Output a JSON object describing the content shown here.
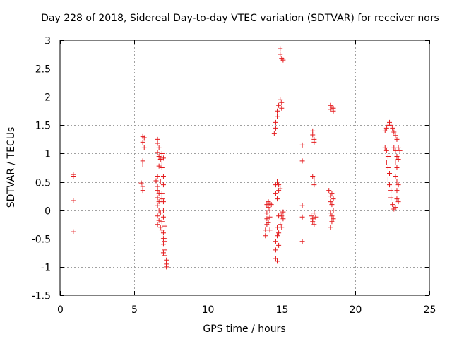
{
  "chart_data": {
    "type": "scatter",
    "title": "Day 228 of 2018, Sidereal Day-to-day VTEC variation (SDTVAR) for receiver nors",
    "xlabel": "GPS time / hours",
    "ylabel": "SDTVAR / TECUs",
    "xlim": [
      0,
      25
    ],
    "ylim": [
      -1.5,
      3
    ],
    "xticks": [
      0,
      5,
      10,
      15,
      20,
      25
    ],
    "xtick_labels": [
      "0",
      "5",
      "10",
      "15",
      "20",
      "25"
    ],
    "yticks": [
      -1.5,
      -1,
      -0.5,
      0,
      0.5,
      1,
      1.5,
      2,
      2.5,
      3
    ],
    "ytick_labels": [
      "-1.5",
      "-1",
      "-0.5",
      "0",
      "0.5",
      "1",
      "1.5",
      "2",
      "2.5",
      "3"
    ],
    "grid": true,
    "marker": "+",
    "color": "#e41a1c",
    "series": [
      {
        "name": "SDTVAR",
        "points": [
          [
            0.9,
            0.63
          ],
          [
            0.9,
            0.6
          ],
          [
            0.9,
            0.17
          ],
          [
            0.9,
            -0.38
          ],
          [
            5.6,
            1.3
          ],
          [
            5.7,
            1.28
          ],
          [
            5.6,
            1.2
          ],
          [
            5.7,
            1.1
          ],
          [
            5.6,
            0.87
          ],
          [
            5.6,
            0.8
          ],
          [
            5.5,
            0.48
          ],
          [
            5.6,
            0.42
          ],
          [
            5.6,
            0.35
          ],
          [
            6.6,
            1.25
          ],
          [
            6.6,
            1.18
          ],
          [
            6.7,
            1.1
          ],
          [
            6.6,
            1.02
          ],
          [
            6.7,
            0.95
          ],
          [
            6.8,
            0.9
          ],
          [
            6.9,
            0.85
          ],
          [
            6.7,
            0.78
          ],
          [
            6.6,
            0.6
          ],
          [
            6.5,
            0.52
          ],
          [
            6.6,
            0.42
          ],
          [
            6.6,
            0.35
          ],
          [
            6.7,
            0.3
          ],
          [
            6.6,
            0.22
          ],
          [
            6.7,
            0.15
          ],
          [
            6.6,
            0.08
          ],
          [
            6.7,
            0.0
          ],
          [
            6.6,
            -0.1
          ],
          [
            6.7,
            -0.18
          ],
          [
            6.6,
            -0.25
          ],
          [
            6.8,
            -0.3
          ],
          [
            6.9,
            -0.35
          ],
          [
            6.9,
            1.0
          ],
          [
            7.0,
            0.92
          ],
          [
            6.9,
            0.75
          ],
          [
            7.0,
            0.6
          ],
          [
            7.0,
            0.45
          ],
          [
            6.9,
            0.3
          ],
          [
            7.0,
            0.15
          ],
          [
            7.0,
            0.0
          ],
          [
            7.0,
            -0.12
          ],
          [
            7.1,
            -0.28
          ],
          [
            7.0,
            -0.4
          ],
          [
            7.1,
            -0.5
          ],
          [
            7.0,
            -0.6
          ],
          [
            7.1,
            -0.7
          ],
          [
            7.1,
            -0.8
          ],
          [
            7.2,
            -0.88
          ],
          [
            7.2,
            -0.95
          ],
          [
            7.2,
            -1.0
          ],
          [
            6.8,
            0.5
          ],
          [
            6.9,
            0.2
          ],
          [
            6.8,
            -0.05
          ],
          [
            6.9,
            -0.2
          ],
          [
            7.0,
            -0.5
          ],
          [
            7.1,
            -0.55
          ],
          [
            7.0,
            -0.75
          ],
          [
            13.9,
            -0.45
          ],
          [
            13.9,
            -0.35
          ],
          [
            14.0,
            -0.25
          ],
          [
            14.0,
            -0.15
          ],
          [
            14.0,
            -0.05
          ],
          [
            14.1,
            0.05
          ],
          [
            14.0,
            0.1
          ],
          [
            14.1,
            0.15
          ],
          [
            14.2,
            0.12
          ],
          [
            14.2,
            0.0
          ],
          [
            14.2,
            -0.12
          ],
          [
            14.1,
            -0.22
          ],
          [
            14.2,
            -0.35
          ],
          [
            14.3,
            0.1
          ],
          [
            14.5,
            1.35
          ],
          [
            14.6,
            1.45
          ],
          [
            14.6,
            1.55
          ],
          [
            14.7,
            1.65
          ],
          [
            14.7,
            1.75
          ],
          [
            14.8,
            1.85
          ],
          [
            14.9,
            1.95
          ],
          [
            15.0,
            1.9
          ],
          [
            15.0,
            1.8
          ],
          [
            14.9,
            2.85
          ],
          [
            14.9,
            2.75
          ],
          [
            15.0,
            2.68
          ],
          [
            15.1,
            2.65
          ],
          [
            14.6,
            0.45
          ],
          [
            14.6,
            0.3
          ],
          [
            14.7,
            0.5
          ],
          [
            14.8,
            0.45
          ],
          [
            14.8,
            0.35
          ],
          [
            14.9,
            0.38
          ],
          [
            14.7,
            0.2
          ],
          [
            14.8,
            -0.1
          ],
          [
            14.9,
            -0.05
          ],
          [
            15.0,
            -0.1
          ],
          [
            15.1,
            -0.15
          ],
          [
            15.1,
            -0.03
          ],
          [
            14.7,
            -0.3
          ],
          [
            14.7,
            -0.45
          ],
          [
            14.6,
            -0.55
          ],
          [
            14.6,
            -0.7
          ],
          [
            14.6,
            -0.85
          ],
          [
            14.7,
            -0.9
          ],
          [
            14.8,
            -0.62
          ],
          [
            14.8,
            -0.4
          ],
          [
            14.9,
            -0.25
          ],
          [
            15.0,
            -0.3
          ],
          [
            16.4,
            1.15
          ],
          [
            16.4,
            0.87
          ],
          [
            16.4,
            0.08
          ],
          [
            16.4,
            -0.12
          ],
          [
            16.4,
            -0.55
          ],
          [
            17.1,
            1.4
          ],
          [
            17.1,
            1.33
          ],
          [
            17.2,
            1.25
          ],
          [
            17.2,
            1.2
          ],
          [
            17.1,
            0.6
          ],
          [
            17.2,
            0.55
          ],
          [
            17.2,
            0.45
          ],
          [
            17.0,
            -0.1
          ],
          [
            17.1,
            -0.15
          ],
          [
            17.1,
            -0.2
          ],
          [
            17.2,
            -0.05
          ],
          [
            17.2,
            -0.25
          ],
          [
            17.3,
            -0.12
          ],
          [
            18.3,
            1.85
          ],
          [
            18.3,
            1.78
          ],
          [
            18.4,
            1.82
          ],
          [
            18.5,
            1.8
          ],
          [
            18.5,
            1.75
          ],
          [
            18.2,
            0.35
          ],
          [
            18.3,
            0.25
          ],
          [
            18.3,
            0.15
          ],
          [
            18.4,
            0.3
          ],
          [
            18.4,
            0.1
          ],
          [
            18.5,
            0.2
          ],
          [
            18.5,
            0.0
          ],
          [
            18.3,
            -0.05
          ],
          [
            18.3,
            -0.3
          ],
          [
            18.4,
            -0.2
          ],
          [
            18.4,
            -0.1
          ],
          [
            18.5,
            -0.15
          ],
          [
            22.0,
            1.4
          ],
          [
            22.1,
            1.45
          ],
          [
            22.2,
            1.5
          ],
          [
            22.3,
            1.55
          ],
          [
            22.4,
            1.5
          ],
          [
            22.5,
            1.45
          ],
          [
            22.6,
            1.38
          ],
          [
            22.7,
            1.32
          ],
          [
            22.8,
            1.25
          ],
          [
            22.0,
            1.1
          ],
          [
            22.1,
            1.05
          ],
          [
            22.2,
            0.95
          ],
          [
            22.1,
            0.85
          ],
          [
            22.2,
            0.75
          ],
          [
            22.3,
            0.65
          ],
          [
            22.2,
            0.55
          ],
          [
            22.3,
            0.45
          ],
          [
            22.4,
            0.35
          ],
          [
            22.4,
            0.22
          ],
          [
            22.5,
            0.1
          ],
          [
            22.6,
            0.02
          ],
          [
            22.6,
            1.1
          ],
          [
            22.7,
            1.05
          ],
          [
            22.8,
            0.95
          ],
          [
            22.7,
            0.85
          ],
          [
            22.8,
            0.75
          ],
          [
            22.7,
            0.6
          ],
          [
            22.8,
            0.5
          ],
          [
            22.9,
            0.45
          ],
          [
            22.8,
            0.35
          ],
          [
            22.9,
            1.1
          ],
          [
            23.0,
            1.05
          ],
          [
            22.9,
            0.9
          ],
          [
            22.8,
            0.2
          ],
          [
            22.9,
            0.15
          ],
          [
            22.7,
            0.05
          ]
        ]
      }
    ]
  }
}
